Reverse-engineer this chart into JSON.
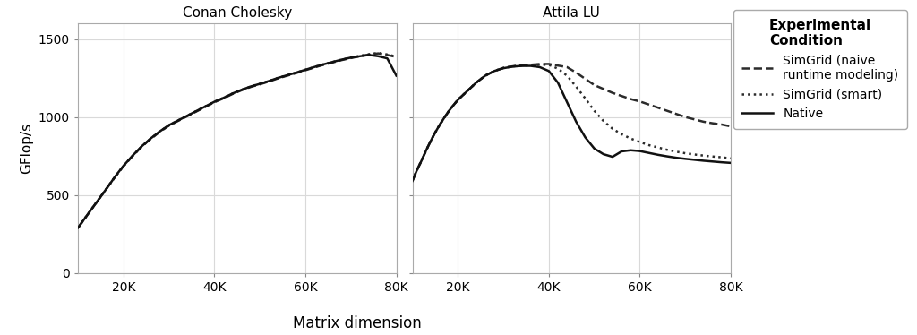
{
  "panel_titles": [
    "Conan Cholesky",
    "Attila LU"
  ],
  "xlabel": "Matrix dimension",
  "ylabel": "GFlop/s",
  "ylim": [
    0,
    1600
  ],
  "yticks": [
    0,
    500,
    1000,
    1500
  ],
  "xticks": [
    20000,
    40000,
    60000,
    80000
  ],
  "xticklabels": [
    "20K",
    "40K",
    "60K",
    "80K"
  ],
  "background_color": "#ffffff",
  "panel_header_color": "#bfbfbf",
  "grid_color": "#d9d9d9",
  "legend_title": "Experimental\nCondition",
  "legend_entries": [
    {
      "label": "SimGrid (naive\nruntime modeling)",
      "linestyle": "--",
      "color": "#2b2b2b",
      "linewidth": 1.8
    },
    {
      "label": "SimGrid (smart)",
      "linestyle": ":",
      "color": "#2b2b2b",
      "linewidth": 1.8
    },
    {
      "label": "Native",
      "linestyle": "-",
      "color": "#111111",
      "linewidth": 1.8
    }
  ],
  "conan_cholesky": {
    "naive_x": [
      10000,
      11000,
      12000,
      13000,
      14000,
      15000,
      16000,
      17000,
      18000,
      19000,
      20000,
      22000,
      24000,
      26000,
      28000,
      30000,
      32000,
      34000,
      36000,
      38000,
      40000,
      42000,
      44000,
      46000,
      48000,
      50000,
      52000,
      54000,
      56000,
      58000,
      60000,
      62000,
      64000,
      66000,
      68000,
      70000,
      72000,
      74000,
      76000,
      78000,
      80000
    ],
    "naive_y": [
      290,
      330,
      370,
      410,
      450,
      490,
      530,
      570,
      610,
      648,
      685,
      750,
      810,
      860,
      905,
      945,
      975,
      1005,
      1035,
      1065,
      1095,
      1120,
      1148,
      1172,
      1193,
      1210,
      1228,
      1248,
      1265,
      1282,
      1300,
      1318,
      1335,
      1350,
      1365,
      1378,
      1390,
      1400,
      1408,
      1398,
      1385
    ],
    "smart_x": [
      10000,
      11000,
      12000,
      13000,
      14000,
      15000,
      16000,
      17000,
      18000,
      19000,
      20000,
      22000,
      24000,
      26000,
      28000,
      30000,
      32000,
      34000,
      36000,
      38000,
      40000,
      42000,
      44000,
      46000,
      48000,
      50000,
      52000,
      54000,
      56000,
      58000,
      60000,
      62000,
      64000,
      66000,
      68000,
      70000,
      72000,
      74000,
      76000,
      78000,
      80000
    ],
    "smart_y": [
      290,
      330,
      370,
      410,
      450,
      490,
      530,
      570,
      610,
      648,
      685,
      750,
      810,
      862,
      907,
      947,
      978,
      1008,
      1038,
      1068,
      1098,
      1123,
      1151,
      1175,
      1196,
      1213,
      1231,
      1251,
      1268,
      1285,
      1303,
      1321,
      1338,
      1353,
      1368,
      1381,
      1393,
      1403,
      1411,
      1401,
      1388
    ],
    "native_x": [
      10000,
      11000,
      12000,
      13000,
      14000,
      15000,
      16000,
      17000,
      18000,
      19000,
      20000,
      22000,
      24000,
      26000,
      28000,
      30000,
      32000,
      34000,
      36000,
      38000,
      40000,
      42000,
      44000,
      46000,
      48000,
      50000,
      52000,
      54000,
      56000,
      58000,
      60000,
      62000,
      64000,
      66000,
      68000,
      70000,
      72000,
      74000,
      76000,
      78000,
      80000
    ],
    "native_y": [
      290,
      330,
      370,
      410,
      450,
      490,
      530,
      570,
      612,
      650,
      687,
      752,
      812,
      863,
      908,
      948,
      978,
      1008,
      1038,
      1068,
      1098,
      1123,
      1151,
      1175,
      1196,
      1213,
      1231,
      1251,
      1268,
      1285,
      1303,
      1321,
      1338,
      1353,
      1368,
      1381,
      1390,
      1398,
      1390,
      1376,
      1265
    ]
  },
  "attila_lu": {
    "naive_x": [
      10000,
      11000,
      12000,
      13000,
      14000,
      15000,
      16000,
      17000,
      18000,
      19000,
      20000,
      22000,
      24000,
      26000,
      28000,
      30000,
      32000,
      34000,
      36000,
      38000,
      40000,
      42000,
      44000,
      46000,
      48000,
      50000,
      52000,
      54000,
      56000,
      58000,
      60000,
      62000,
      64000,
      66000,
      68000,
      70000,
      72000,
      74000,
      76000,
      78000,
      80000
    ],
    "naive_y": [
      590,
      660,
      720,
      785,
      845,
      900,
      950,
      995,
      1038,
      1075,
      1110,
      1165,
      1220,
      1265,
      1295,
      1315,
      1325,
      1330,
      1335,
      1340,
      1340,
      1330,
      1320,
      1285,
      1245,
      1205,
      1180,
      1155,
      1135,
      1115,
      1100,
      1080,
      1060,
      1040,
      1020,
      1000,
      985,
      970,
      960,
      952,
      940
    ],
    "smart_x": [
      10000,
      11000,
      12000,
      13000,
      14000,
      15000,
      16000,
      17000,
      18000,
      19000,
      20000,
      22000,
      24000,
      26000,
      28000,
      30000,
      32000,
      34000,
      36000,
      38000,
      40000,
      42000,
      44000,
      46000,
      48000,
      50000,
      52000,
      54000,
      56000,
      58000,
      60000,
      62000,
      64000,
      66000,
      68000,
      70000,
      72000,
      74000,
      76000,
      78000,
      80000
    ],
    "smart_y": [
      590,
      660,
      720,
      785,
      845,
      900,
      950,
      995,
      1038,
      1075,
      1110,
      1165,
      1220,
      1265,
      1295,
      1315,
      1325,
      1330,
      1332,
      1335,
      1335,
      1310,
      1265,
      1195,
      1120,
      1040,
      975,
      925,
      890,
      862,
      840,
      820,
      805,
      790,
      778,
      768,
      760,
      753,
      747,
      742,
      735
    ],
    "native_x": [
      10000,
      11000,
      12000,
      13000,
      14000,
      15000,
      16000,
      17000,
      18000,
      19000,
      20000,
      22000,
      24000,
      26000,
      28000,
      30000,
      32000,
      34000,
      36000,
      38000,
      40000,
      42000,
      44000,
      46000,
      48000,
      50000,
      52000,
      54000,
      56000,
      58000,
      60000,
      62000,
      64000,
      66000,
      68000,
      70000,
      72000,
      74000,
      76000,
      78000,
      80000
    ],
    "native_y": [
      590,
      660,
      720,
      785,
      845,
      900,
      950,
      995,
      1038,
      1075,
      1110,
      1165,
      1220,
      1265,
      1295,
      1313,
      1323,
      1328,
      1328,
      1320,
      1295,
      1220,
      1095,
      970,
      870,
      798,
      762,
      745,
      780,
      787,
      782,
      770,
      758,
      748,
      739,
      732,
      726,
      720,
      715,
      710,
      706
    ]
  }
}
